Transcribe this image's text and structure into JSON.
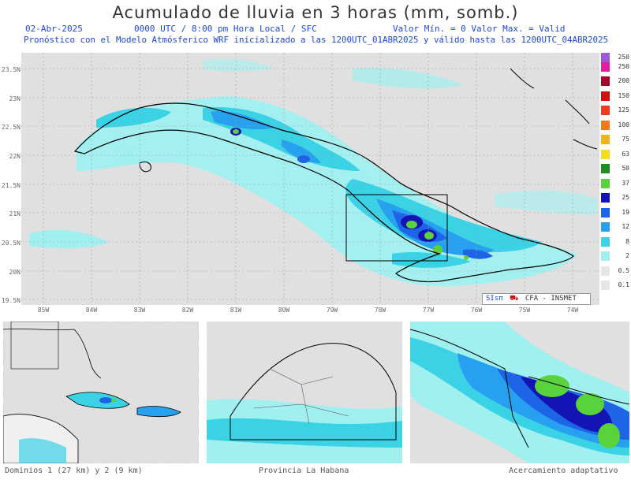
{
  "header": {
    "title": "Acumulado de lluvia en 3 horas (mm, somb.)",
    "date": "02-Abr-2025",
    "time": "0000 UTC / 8:00 pm Hora Local / SFC",
    "range": "Valor Mín. = 0  Valor Max. = Valid",
    "forecast": "Pronóstico con el Modelo Atmósferico WRF inicializado a las 1200UTC_01ABR2025 y válido hasta las  1200UTC_04ABR2025"
  },
  "axes": {
    "lat": [
      "23.5N",
      "23N",
      "22.5N",
      "22N",
      "21.5N",
      "21N",
      "20.5N",
      "20N",
      "19.5N"
    ],
    "lon": [
      "85W",
      "84W",
      "83W",
      "82W",
      "81W",
      "80W",
      "79W",
      "78W",
      "77W",
      "76W",
      "75W",
      "74W"
    ]
  },
  "legend": {
    "levels": [
      {
        "label": "250",
        "color": "#9c5ad6"
      },
      {
        "label": "200",
        "color": "#e01ea0"
      },
      {
        "label": "150",
        "color": "#a8002c"
      },
      {
        "label": "125",
        "color": "#d41010"
      },
      {
        "label": "100",
        "color": "#f03c1e"
      },
      {
        "label": "75",
        "color": "#f0781e"
      },
      {
        "label": "63",
        "color": "#f0b41e"
      },
      {
        "label": "50",
        "color": "#f5dc1e"
      },
      {
        "label": "37",
        "color": "#1e8c1e"
      },
      {
        "label": "25",
        "color": "#5ad23c"
      },
      {
        "label": "19",
        "color": "#1414b4"
      },
      {
        "label": "12",
        "color": "#1e64e6"
      },
      {
        "label": "8",
        "color": "#28a0f0"
      },
      {
        "label": "2",
        "color": "#3cd2e6"
      },
      {
        "label": "0.5",
        "color": "#a0f0f0"
      },
      {
        "label": "0.1",
        "color": "#e6e6e6"
      }
    ]
  },
  "credit": {
    "logo_text": "SIsπ",
    "agency": "CFA - INSMET"
  },
  "panels": {
    "left_caption": "Dominios 1 (27 km) y 2 (9 km)",
    "center_caption": "Provincia La Habana",
    "right_caption": "Acercamiento adaptativo"
  }
}
